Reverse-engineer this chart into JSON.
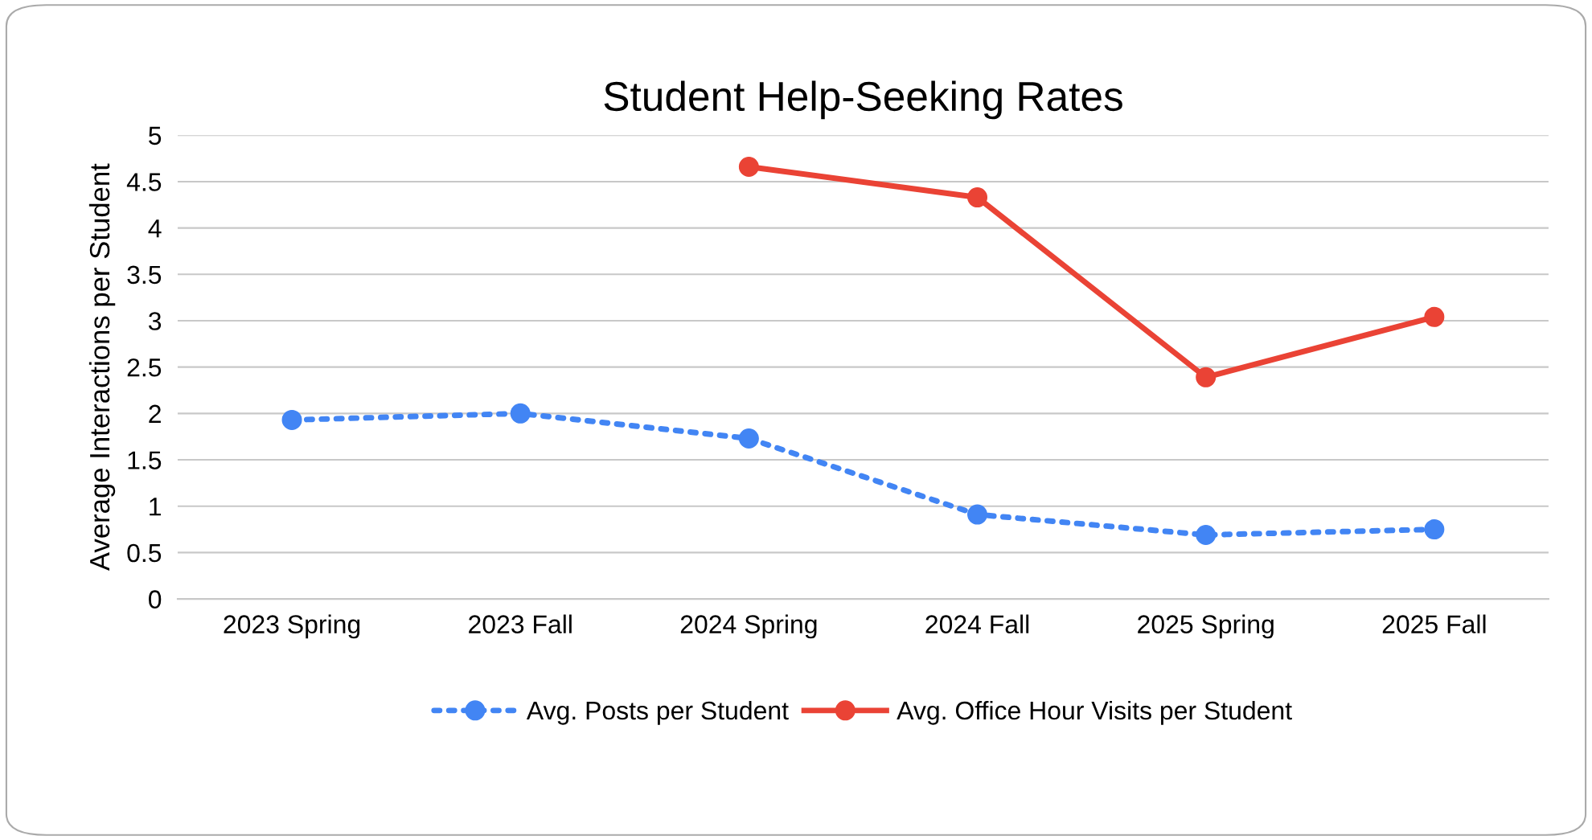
{
  "chart_data": {
    "type": "line",
    "title": "Student Help-Seeking Rates",
    "ylabel": "Average Interactions per Student",
    "categories": [
      "2023 Spring",
      "2023 Fall",
      "2024 Spring",
      "2024 Fall",
      "2025 Spring",
      "2025 Fall"
    ],
    "series": [
      {
        "name": "Avg. Posts per Student",
        "color": "#4285f4",
        "values": [
          1.93,
          2.0,
          1.73,
          0.91,
          0.69,
          0.75
        ],
        "line_style": "dotted"
      },
      {
        "name": "Avg. Office Hour Visits per Student",
        "color": "#ea4335",
        "values": [
          null,
          null,
          4.66,
          4.33,
          2.39,
          3.04
        ],
        "line_style": "solid"
      }
    ],
    "ylim": [
      0,
      5
    ],
    "yticks": [
      0,
      0.5,
      1,
      1.5,
      2,
      2.5,
      3,
      3.5,
      4,
      4.5,
      5
    ],
    "grid": "y",
    "legend": "bottom",
    "marker": "circle"
  }
}
